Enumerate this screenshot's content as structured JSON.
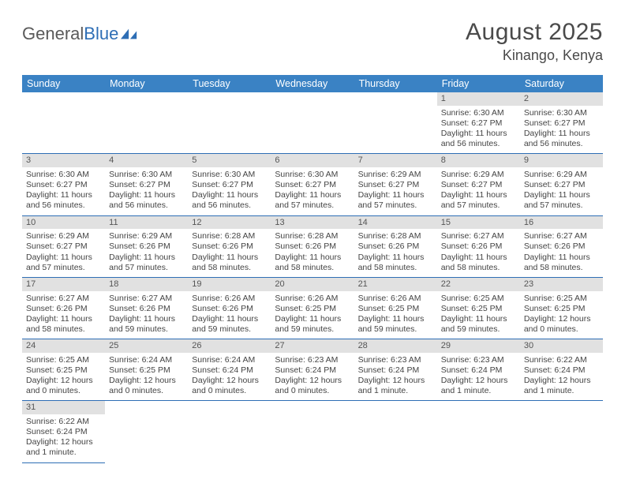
{
  "logo": {
    "text_a": "General",
    "text_b": "Blue",
    "icon_color": "#2e6eb5"
  },
  "header": {
    "month": "August 2025",
    "location": "Kinango, Kenya"
  },
  "colors": {
    "header_bg": "#3a82c4",
    "header_text": "#ffffff",
    "numstrip_bg": "#e1e1e1",
    "rule": "#2e6eb5",
    "text": "#444444"
  },
  "weekdays": [
    "Sunday",
    "Monday",
    "Tuesday",
    "Wednesday",
    "Thursday",
    "Friday",
    "Saturday"
  ],
  "weeks": [
    [
      null,
      null,
      null,
      null,
      null,
      {
        "n": "1",
        "sunrise": "Sunrise: 6:30 AM",
        "sunset": "Sunset: 6:27 PM",
        "daylight": "Daylight: 11 hours and 56 minutes."
      },
      {
        "n": "2",
        "sunrise": "Sunrise: 6:30 AM",
        "sunset": "Sunset: 6:27 PM",
        "daylight": "Daylight: 11 hours and 56 minutes."
      }
    ],
    [
      {
        "n": "3",
        "sunrise": "Sunrise: 6:30 AM",
        "sunset": "Sunset: 6:27 PM",
        "daylight": "Daylight: 11 hours and 56 minutes."
      },
      {
        "n": "4",
        "sunrise": "Sunrise: 6:30 AM",
        "sunset": "Sunset: 6:27 PM",
        "daylight": "Daylight: 11 hours and 56 minutes."
      },
      {
        "n": "5",
        "sunrise": "Sunrise: 6:30 AM",
        "sunset": "Sunset: 6:27 PM",
        "daylight": "Daylight: 11 hours and 56 minutes."
      },
      {
        "n": "6",
        "sunrise": "Sunrise: 6:30 AM",
        "sunset": "Sunset: 6:27 PM",
        "daylight": "Daylight: 11 hours and 57 minutes."
      },
      {
        "n": "7",
        "sunrise": "Sunrise: 6:29 AM",
        "sunset": "Sunset: 6:27 PM",
        "daylight": "Daylight: 11 hours and 57 minutes."
      },
      {
        "n": "8",
        "sunrise": "Sunrise: 6:29 AM",
        "sunset": "Sunset: 6:27 PM",
        "daylight": "Daylight: 11 hours and 57 minutes."
      },
      {
        "n": "9",
        "sunrise": "Sunrise: 6:29 AM",
        "sunset": "Sunset: 6:27 PM",
        "daylight": "Daylight: 11 hours and 57 minutes."
      }
    ],
    [
      {
        "n": "10",
        "sunrise": "Sunrise: 6:29 AM",
        "sunset": "Sunset: 6:27 PM",
        "daylight": "Daylight: 11 hours and 57 minutes."
      },
      {
        "n": "11",
        "sunrise": "Sunrise: 6:29 AM",
        "sunset": "Sunset: 6:26 PM",
        "daylight": "Daylight: 11 hours and 57 minutes."
      },
      {
        "n": "12",
        "sunrise": "Sunrise: 6:28 AM",
        "sunset": "Sunset: 6:26 PM",
        "daylight": "Daylight: 11 hours and 58 minutes."
      },
      {
        "n": "13",
        "sunrise": "Sunrise: 6:28 AM",
        "sunset": "Sunset: 6:26 PM",
        "daylight": "Daylight: 11 hours and 58 minutes."
      },
      {
        "n": "14",
        "sunrise": "Sunrise: 6:28 AM",
        "sunset": "Sunset: 6:26 PM",
        "daylight": "Daylight: 11 hours and 58 minutes."
      },
      {
        "n": "15",
        "sunrise": "Sunrise: 6:27 AM",
        "sunset": "Sunset: 6:26 PM",
        "daylight": "Daylight: 11 hours and 58 minutes."
      },
      {
        "n": "16",
        "sunrise": "Sunrise: 6:27 AM",
        "sunset": "Sunset: 6:26 PM",
        "daylight": "Daylight: 11 hours and 58 minutes."
      }
    ],
    [
      {
        "n": "17",
        "sunrise": "Sunrise: 6:27 AM",
        "sunset": "Sunset: 6:26 PM",
        "daylight": "Daylight: 11 hours and 58 minutes."
      },
      {
        "n": "18",
        "sunrise": "Sunrise: 6:27 AM",
        "sunset": "Sunset: 6:26 PM",
        "daylight": "Daylight: 11 hours and 59 minutes."
      },
      {
        "n": "19",
        "sunrise": "Sunrise: 6:26 AM",
        "sunset": "Sunset: 6:26 PM",
        "daylight": "Daylight: 11 hours and 59 minutes."
      },
      {
        "n": "20",
        "sunrise": "Sunrise: 6:26 AM",
        "sunset": "Sunset: 6:25 PM",
        "daylight": "Daylight: 11 hours and 59 minutes."
      },
      {
        "n": "21",
        "sunrise": "Sunrise: 6:26 AM",
        "sunset": "Sunset: 6:25 PM",
        "daylight": "Daylight: 11 hours and 59 minutes."
      },
      {
        "n": "22",
        "sunrise": "Sunrise: 6:25 AM",
        "sunset": "Sunset: 6:25 PM",
        "daylight": "Daylight: 11 hours and 59 minutes."
      },
      {
        "n": "23",
        "sunrise": "Sunrise: 6:25 AM",
        "sunset": "Sunset: 6:25 PM",
        "daylight": "Daylight: 12 hours and 0 minutes."
      }
    ],
    [
      {
        "n": "24",
        "sunrise": "Sunrise: 6:25 AM",
        "sunset": "Sunset: 6:25 PM",
        "daylight": "Daylight: 12 hours and 0 minutes."
      },
      {
        "n": "25",
        "sunrise": "Sunrise: 6:24 AM",
        "sunset": "Sunset: 6:25 PM",
        "daylight": "Daylight: 12 hours and 0 minutes."
      },
      {
        "n": "26",
        "sunrise": "Sunrise: 6:24 AM",
        "sunset": "Sunset: 6:24 PM",
        "daylight": "Daylight: 12 hours and 0 minutes."
      },
      {
        "n": "27",
        "sunrise": "Sunrise: 6:23 AM",
        "sunset": "Sunset: 6:24 PM",
        "daylight": "Daylight: 12 hours and 0 minutes."
      },
      {
        "n": "28",
        "sunrise": "Sunrise: 6:23 AM",
        "sunset": "Sunset: 6:24 PM",
        "daylight": "Daylight: 12 hours and 1 minute."
      },
      {
        "n": "29",
        "sunrise": "Sunrise: 6:23 AM",
        "sunset": "Sunset: 6:24 PM",
        "daylight": "Daylight: 12 hours and 1 minute."
      },
      {
        "n": "30",
        "sunrise": "Sunrise: 6:22 AM",
        "sunset": "Sunset: 6:24 PM",
        "daylight": "Daylight: 12 hours and 1 minute."
      }
    ],
    [
      {
        "n": "31",
        "sunrise": "Sunrise: 6:22 AM",
        "sunset": "Sunset: 6:24 PM",
        "daylight": "Daylight: 12 hours and 1 minute."
      },
      null,
      null,
      null,
      null,
      null,
      null
    ]
  ]
}
